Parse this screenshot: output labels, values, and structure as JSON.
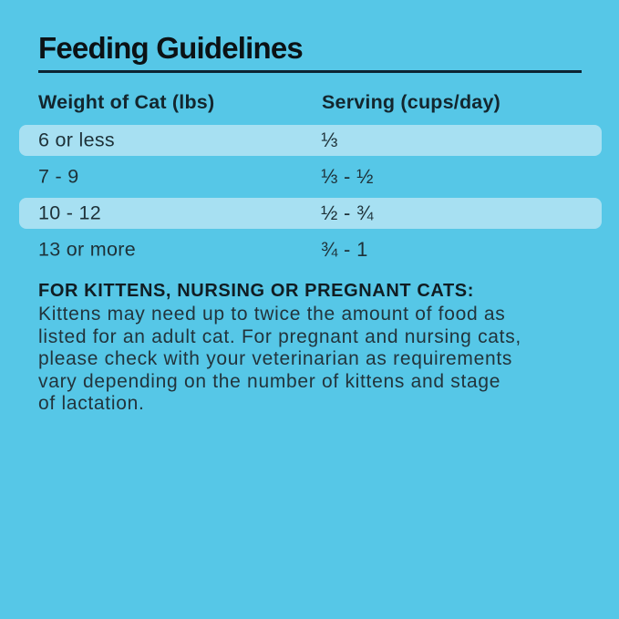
{
  "page": {
    "background_color": "#56C7E7",
    "highlight_color": "#A7E0F2",
    "text_color": "#1E3138",
    "rule_color": "#0D2433"
  },
  "title": "Feeding Guidelines",
  "table": {
    "headers": {
      "weight": "Weight of Cat (lbs)",
      "serving": "Serving (cups/day)"
    },
    "rows": [
      {
        "weight": "6 or less",
        "serving": "⅓",
        "highlighted": true
      },
      {
        "weight": "7 - 9",
        "serving": "⅓ - ½",
        "highlighted": false
      },
      {
        "weight": "10 - 12",
        "serving": "½ - ¾",
        "highlighted": true
      },
      {
        "weight": "13 or more",
        "serving": "¾ - 1",
        "highlighted": false
      }
    ]
  },
  "note": {
    "heading": "FOR KITTENS, NURSING OR PREGNANT CATS:",
    "body": "Kittens may need up to twice the amount of food as\nlisted for an adult cat. For pregnant and nursing cats,\nplease check with your veterinarian as requirements\nvary depending on the number of kittens and stage\nof lactation."
  }
}
